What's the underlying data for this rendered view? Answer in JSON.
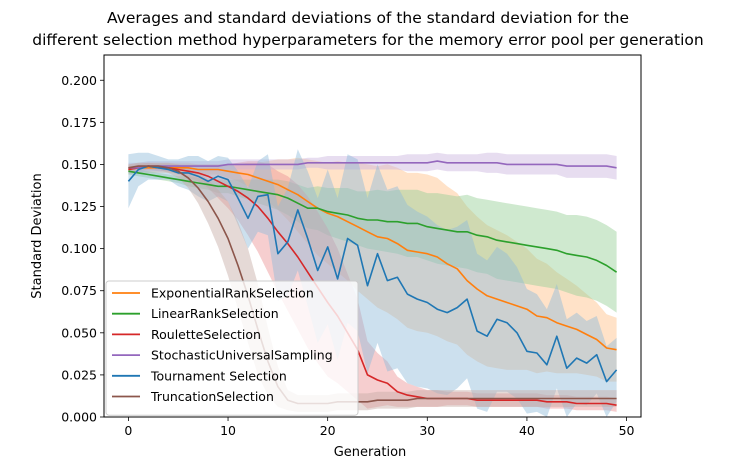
{
  "chart_data": {
    "type": "line",
    "title_lines": [
      "Averages and standard deviations of the standard deviation for the",
      "different selection method hyperparameters for the memory error pool per generation"
    ],
    "xlabel": "Generation",
    "ylabel": "Standard Deviation",
    "xlim": [
      -2.45,
      51.45
    ],
    "ylim": [
      0,
      0.215
    ],
    "xticks": [
      0,
      10,
      20,
      30,
      40,
      50
    ],
    "yticks": [
      0.0,
      0.025,
      0.05,
      0.075,
      0.1,
      0.125,
      0.15,
      0.175,
      0.2
    ],
    "ytick_labels": [
      "0.000",
      "0.025",
      "0.050",
      "0.075",
      "0.100",
      "0.125",
      "0.150",
      "0.175",
      "0.200"
    ],
    "grid": false,
    "legend_position": "lower-left",
    "series": [
      {
        "name": "ExponentialRankSelection",
        "color": "#ff7f0e",
        "band_color": "#ffbf86",
        "y": [
          0.147,
          0.148,
          0.148,
          0.148,
          0.148,
          0.148,
          0.148,
          0.147,
          0.147,
          0.147,
          0.146,
          0.145,
          0.144,
          0.142,
          0.14,
          0.138,
          0.135,
          0.132,
          0.128,
          0.124,
          0.121,
          0.119,
          0.116,
          0.113,
          0.11,
          0.107,
          0.106,
          0.103,
          0.099,
          0.098,
          0.097,
          0.095,
          0.091,
          0.088,
          0.081,
          0.076,
          0.072,
          0.07,
          0.068,
          0.066,
          0.064,
          0.06,
          0.059,
          0.056,
          0.054,
          0.052,
          0.049,
          0.046,
          0.041,
          0.04
        ],
        "sd": [
          0.003,
          0.003,
          0.003,
          0.003,
          0.003,
          0.003,
          0.003,
          0.003,
          0.003,
          0.003,
          0.004,
          0.005,
          0.007,
          0.009,
          0.012,
          0.015,
          0.018,
          0.022,
          0.025,
          0.028,
          0.03,
          0.033,
          0.035,
          0.038,
          0.04,
          0.042,
          0.044,
          0.045,
          0.046,
          0.047,
          0.047,
          0.047,
          0.046,
          0.045,
          0.044,
          0.043,
          0.042,
          0.041,
          0.04,
          0.038,
          0.036,
          0.034,
          0.032,
          0.03,
          0.028,
          0.026,
          0.024,
          0.022,
          0.02,
          0.019
        ]
      },
      {
        "name": "LinearRankSelection",
        "color": "#2ca02c",
        "band_color": "#95cf95",
        "y": [
          0.146,
          0.145,
          0.144,
          0.143,
          0.142,
          0.141,
          0.14,
          0.139,
          0.138,
          0.137,
          0.137,
          0.136,
          0.135,
          0.134,
          0.133,
          0.132,
          0.13,
          0.127,
          0.124,
          0.124,
          0.122,
          0.121,
          0.12,
          0.118,
          0.117,
          0.117,
          0.116,
          0.116,
          0.115,
          0.115,
          0.113,
          0.112,
          0.111,
          0.11,
          0.11,
          0.108,
          0.107,
          0.105,
          0.104,
          0.103,
          0.102,
          0.101,
          0.1,
          0.099,
          0.097,
          0.096,
          0.095,
          0.093,
          0.09,
          0.086
        ],
        "sd": [
          0.002,
          0.002,
          0.002,
          0.002,
          0.002,
          0.002,
          0.003,
          0.003,
          0.003,
          0.004,
          0.004,
          0.005,
          0.006,
          0.007,
          0.008,
          0.009,
          0.01,
          0.011,
          0.012,
          0.013,
          0.014,
          0.015,
          0.016,
          0.016,
          0.017,
          0.018,
          0.018,
          0.019,
          0.02,
          0.02,
          0.02,
          0.021,
          0.021,
          0.021,
          0.022,
          0.022,
          0.022,
          0.023,
          0.023,
          0.023,
          0.023,
          0.023,
          0.023,
          0.023,
          0.023,
          0.024,
          0.024,
          0.024,
          0.024,
          0.024
        ]
      },
      {
        "name": "RouletteSelection",
        "color": "#d62728",
        "band_color": "#eb9394",
        "y": [
          0.147,
          0.148,
          0.149,
          0.148,
          0.148,
          0.147,
          0.146,
          0.145,
          0.143,
          0.14,
          0.137,
          0.134,
          0.13,
          0.125,
          0.118,
          0.11,
          0.103,
          0.095,
          0.086,
          0.077,
          0.068,
          0.06,
          0.05,
          0.04,
          0.025,
          0.022,
          0.02,
          0.015,
          0.013,
          0.012,
          0.011,
          0.011,
          0.011,
          0.011,
          0.011,
          0.01,
          0.01,
          0.01,
          0.01,
          0.01,
          0.01,
          0.01,
          0.009,
          0.009,
          0.009,
          0.008,
          0.008,
          0.008,
          0.008,
          0.007
        ],
        "sd": [
          0.002,
          0.002,
          0.002,
          0.002,
          0.002,
          0.003,
          0.004,
          0.005,
          0.007,
          0.01,
          0.013,
          0.017,
          0.022,
          0.027,
          0.032,
          0.036,
          0.04,
          0.043,
          0.045,
          0.045,
          0.044,
          0.04,
          0.035,
          0.03,
          0.02,
          0.016,
          0.013,
          0.009,
          0.007,
          0.006,
          0.005,
          0.005,
          0.004,
          0.004,
          0.004,
          0.004,
          0.004,
          0.004,
          0.004,
          0.004,
          0.004,
          0.004,
          0.004,
          0.004,
          0.004,
          0.004,
          0.004,
          0.004,
          0.004,
          0.004
        ]
      },
      {
        "name": "StochasticUniversalSampling",
        "color": "#9467bd",
        "band_color": "#c9b3de",
        "y": [
          0.148,
          0.148,
          0.149,
          0.149,
          0.149,
          0.149,
          0.149,
          0.149,
          0.149,
          0.149,
          0.15,
          0.15,
          0.15,
          0.15,
          0.15,
          0.15,
          0.15,
          0.15,
          0.151,
          0.151,
          0.151,
          0.151,
          0.151,
          0.151,
          0.151,
          0.151,
          0.151,
          0.151,
          0.151,
          0.151,
          0.151,
          0.152,
          0.151,
          0.151,
          0.151,
          0.151,
          0.151,
          0.151,
          0.15,
          0.15,
          0.15,
          0.15,
          0.15,
          0.15,
          0.149,
          0.149,
          0.149,
          0.149,
          0.149,
          0.148
        ],
        "sd": [
          0.003,
          0.003,
          0.003,
          0.003,
          0.003,
          0.003,
          0.003,
          0.003,
          0.003,
          0.003,
          0.003,
          0.003,
          0.003,
          0.003,
          0.003,
          0.003,
          0.003,
          0.003,
          0.003,
          0.003,
          0.004,
          0.004,
          0.004,
          0.004,
          0.004,
          0.004,
          0.004,
          0.004,
          0.005,
          0.005,
          0.005,
          0.005,
          0.005,
          0.005,
          0.005,
          0.005,
          0.006,
          0.006,
          0.006,
          0.006,
          0.006,
          0.006,
          0.006,
          0.006,
          0.007,
          0.007,
          0.007,
          0.007,
          0.007,
          0.007
        ]
      },
      {
        "name": "Tournament Selection",
        "color": "#1f77b4",
        "band_color": "#8fbbd9",
        "y": [
          0.14,
          0.147,
          0.149,
          0.148,
          0.147,
          0.145,
          0.145,
          0.143,
          0.14,
          0.143,
          0.141,
          0.13,
          0.118,
          0.131,
          0.132,
          0.097,
          0.104,
          0.123,
          0.106,
          0.087,
          0.101,
          0.082,
          0.106,
          0.102,
          0.078,
          0.097,
          0.081,
          0.083,
          0.073,
          0.07,
          0.068,
          0.064,
          0.062,
          0.065,
          0.07,
          0.051,
          0.048,
          0.058,
          0.056,
          0.05,
          0.039,
          0.038,
          0.031,
          0.048,
          0.029,
          0.035,
          0.032,
          0.037,
          0.021,
          0.028
        ],
        "sd": [
          0.016,
          0.01,
          0.008,
          0.007,
          0.006,
          0.008,
          0.01,
          0.012,
          0.012,
          0.012,
          0.013,
          0.016,
          0.018,
          0.021,
          0.024,
          0.028,
          0.032,
          0.036,
          0.04,
          0.043,
          0.046,
          0.048,
          0.05,
          0.051,
          0.052,
          0.053,
          0.054,
          0.054,
          0.053,
          0.052,
          0.051,
          0.05,
          0.049,
          0.048,
          0.047,
          0.046,
          0.045,
          0.043,
          0.041,
          0.039,
          0.037,
          0.035,
          0.033,
          0.031,
          0.029,
          0.027,
          0.025,
          0.023,
          0.021,
          0.019
        ]
      },
      {
        "name": "TruncationSelection",
        "color": "#8c564b",
        "band_color": "#c5aaa5",
        "y": [
          0.148,
          0.149,
          0.149,
          0.149,
          0.148,
          0.146,
          0.142,
          0.136,
          0.128,
          0.118,
          0.106,
          0.09,
          0.072,
          0.052,
          0.033,
          0.018,
          0.01,
          0.008,
          0.008,
          0.008,
          0.008,
          0.009,
          0.009,
          0.009,
          0.009,
          0.01,
          0.01,
          0.01,
          0.01,
          0.011,
          0.011,
          0.011,
          0.011,
          0.011,
          0.011,
          0.011,
          0.011,
          0.011,
          0.011,
          0.011,
          0.011,
          0.011,
          0.011,
          0.011,
          0.011,
          0.011,
          0.011,
          0.011,
          0.011,
          0.011
        ],
        "sd": [
          0.002,
          0.002,
          0.002,
          0.002,
          0.003,
          0.004,
          0.006,
          0.009,
          0.013,
          0.017,
          0.022,
          0.026,
          0.028,
          0.027,
          0.02,
          0.012,
          0.006,
          0.005,
          0.005,
          0.005,
          0.005,
          0.005,
          0.005,
          0.005,
          0.005,
          0.005,
          0.005,
          0.005,
          0.005,
          0.005,
          0.005,
          0.005,
          0.005,
          0.005,
          0.005,
          0.005,
          0.005,
          0.005,
          0.005,
          0.005,
          0.005,
          0.005,
          0.005,
          0.005,
          0.005,
          0.005,
          0.005,
          0.005,
          0.005,
          0.005
        ]
      }
    ]
  }
}
